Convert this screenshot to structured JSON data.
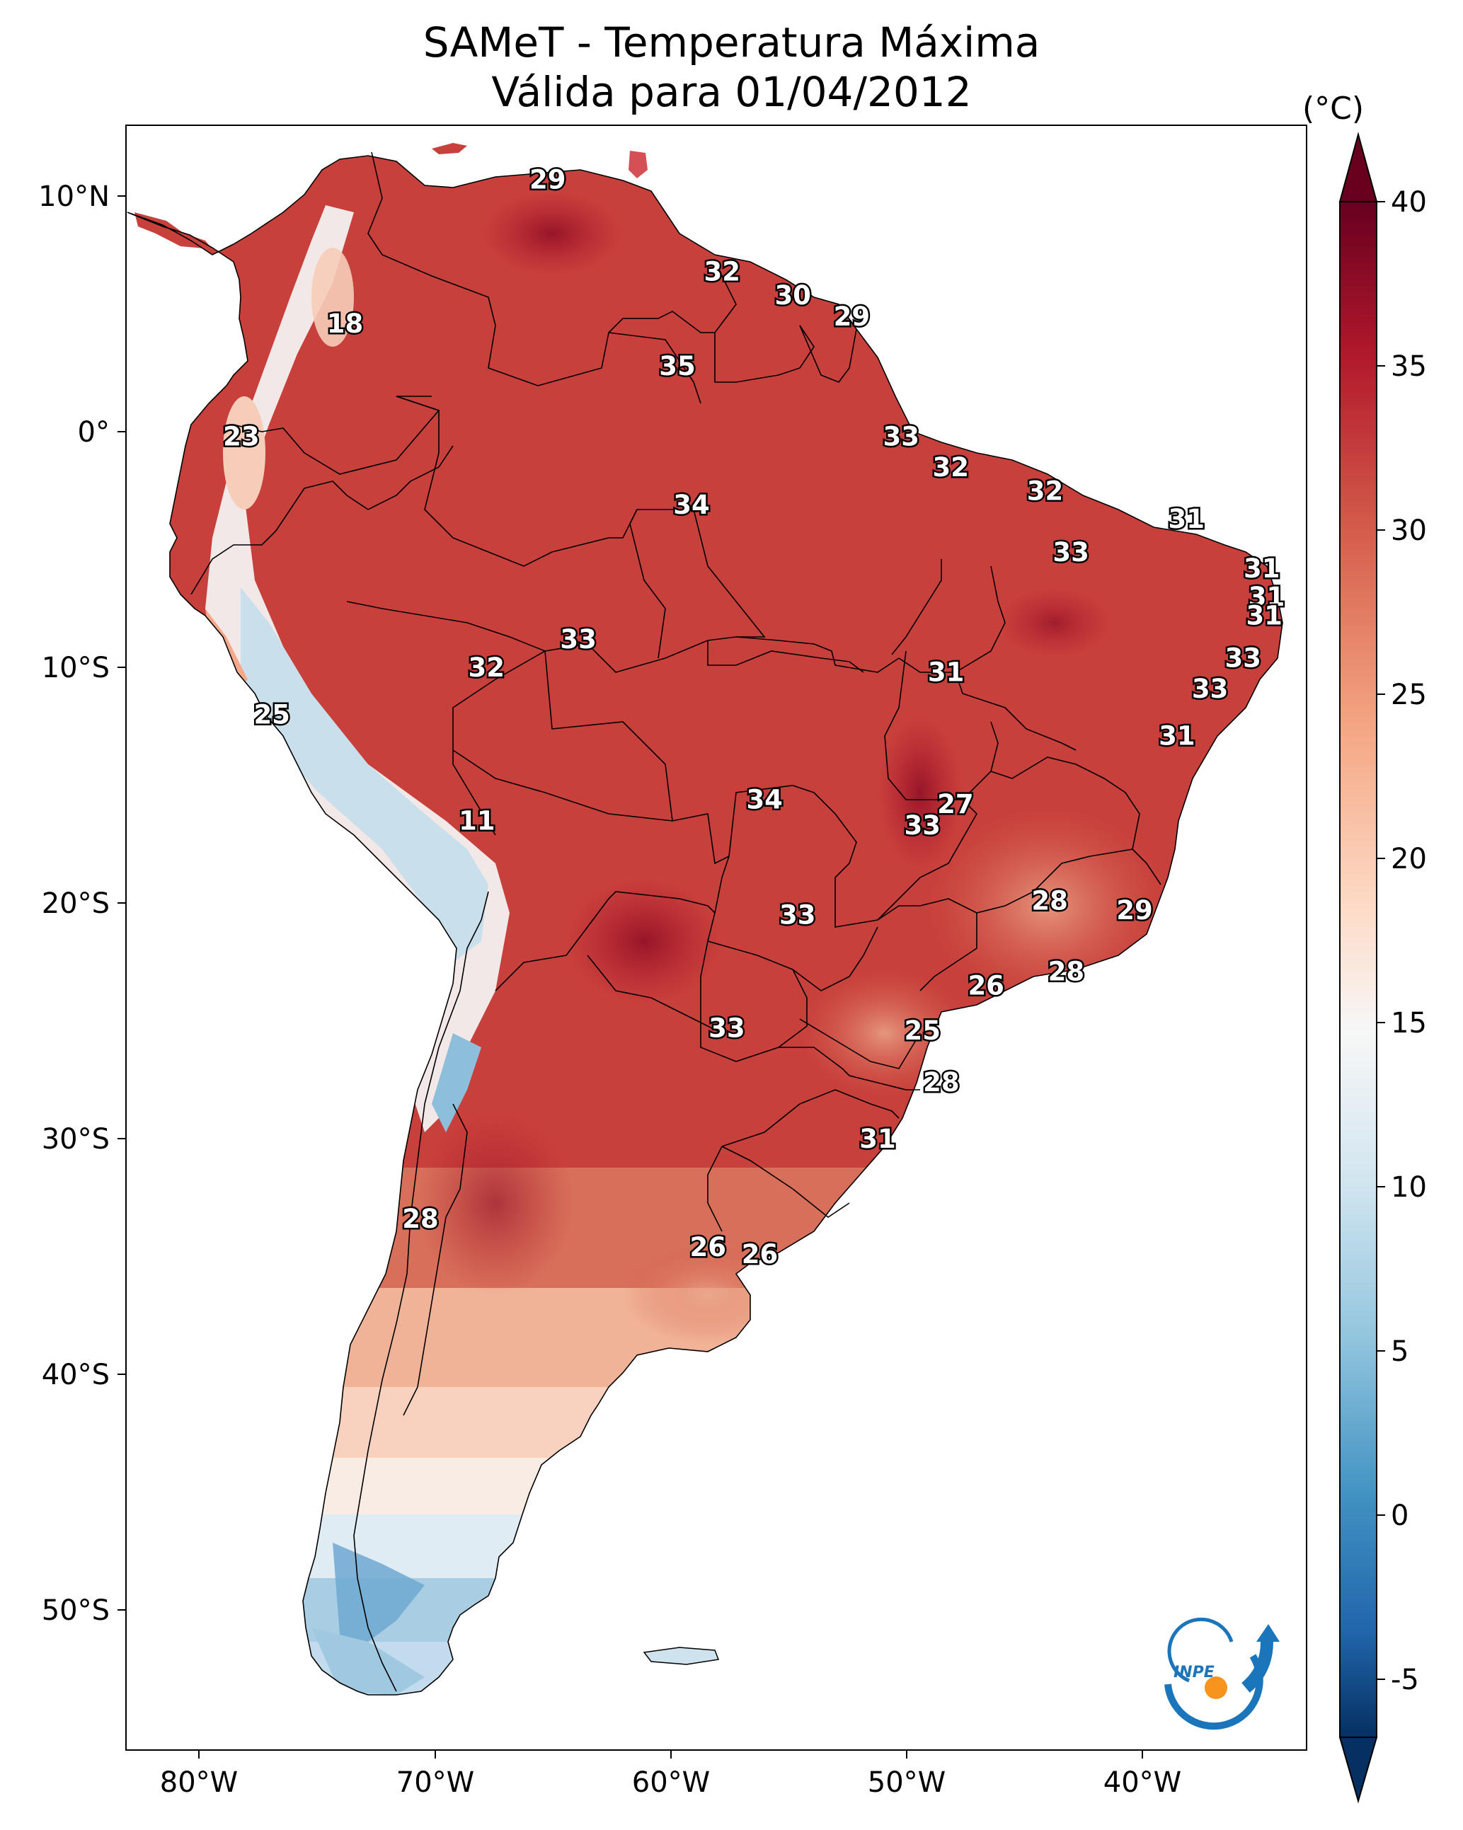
{
  "title": {
    "line1": "SAMeT - Temperatura Máxima",
    "line2": "Válida para 01/04/2012"
  },
  "colorbar": {
    "unit": "(°C)",
    "ticks": [
      "40",
      "35",
      "30",
      "25",
      "20",
      "15",
      "10",
      "5",
      "0",
      "-5"
    ],
    "colors": [
      "#67001f",
      "#b2182b",
      "#d6604d",
      "#f4a582",
      "#fddbc7",
      "#f7f7f7",
      "#d1e5f0",
      "#92c5de",
      "#4393c3",
      "#2166ac",
      "#053061"
    ]
  },
  "axes": {
    "lat_labels": [
      "10°N",
      "0°",
      "10°S",
      "20°S",
      "30°S",
      "40°S",
      "50°S"
    ],
    "lon_labels": [
      "80°W",
      "70°W",
      "60°W",
      "50°W",
      "40°W"
    ]
  },
  "logo": {
    "text": "INPE",
    "colors": {
      "blue": "#1b75bb",
      "orange": "#f7941d"
    }
  },
  "values": [
    {
      "lon": -65.2,
      "lat": 10.7,
      "text": "29"
    },
    {
      "lon": -73.8,
      "lat": 4.6,
      "text": "18"
    },
    {
      "lon": -57.8,
      "lat": 6.8,
      "text": "32"
    },
    {
      "lon": -54.8,
      "lat": 5.8,
      "text": "30"
    },
    {
      "lon": -52.3,
      "lat": 4.9,
      "text": "29"
    },
    {
      "lon": -59.7,
      "lat": 2.8,
      "text": "35"
    },
    {
      "lon": -78.2,
      "lat": -0.2,
      "text": "23"
    },
    {
      "lon": -50.2,
      "lat": -0.2,
      "text": "33"
    },
    {
      "lon": -48.1,
      "lat": -1.5,
      "text": "32"
    },
    {
      "lon": -44.1,
      "lat": -2.5,
      "text": "32"
    },
    {
      "lon": -59.1,
      "lat": -3.1,
      "text": "34"
    },
    {
      "lon": -38.1,
      "lat": -3.7,
      "text": "31"
    },
    {
      "lon": -43.0,
      "lat": -5.1,
      "text": "33"
    },
    {
      "lon": -34.9,
      "lat": -5.8,
      "text": "31"
    },
    {
      "lon": -34.7,
      "lat": -7.0,
      "text": "31"
    },
    {
      "lon": -34.8,
      "lat": -7.8,
      "text": "31"
    },
    {
      "lon": -63.9,
      "lat": -8.8,
      "text": "33"
    },
    {
      "lon": -35.7,
      "lat": -9.6,
      "text": "33"
    },
    {
      "lon": -67.8,
      "lat": -10.0,
      "text": "32"
    },
    {
      "lon": -48.3,
      "lat": -10.2,
      "text": "31"
    },
    {
      "lon": -37.1,
      "lat": -10.9,
      "text": "33"
    },
    {
      "lon": -76.9,
      "lat": -12.0,
      "text": "25"
    },
    {
      "lon": -38.5,
      "lat": -12.9,
      "text": "31"
    },
    {
      "lon": -56.0,
      "lat": -15.6,
      "text": "34"
    },
    {
      "lon": -47.9,
      "lat": -15.8,
      "text": "27"
    },
    {
      "lon": -49.3,
      "lat": -16.7,
      "text": "33"
    },
    {
      "lon": -68.2,
      "lat": -16.5,
      "text": "11"
    },
    {
      "lon": -43.9,
      "lat": -19.9,
      "text": "28"
    },
    {
      "lon": -40.3,
      "lat": -20.3,
      "text": "29"
    },
    {
      "lon": -54.6,
      "lat": -20.5,
      "text": "33"
    },
    {
      "lon": -43.2,
      "lat": -22.9,
      "text": "28"
    },
    {
      "lon": -46.6,
      "lat": -23.5,
      "text": "26"
    },
    {
      "lon": -57.6,
      "lat": -25.3,
      "text": "33"
    },
    {
      "lon": -49.3,
      "lat": -25.4,
      "text": "25"
    },
    {
      "lon": -48.5,
      "lat": -27.6,
      "text": "28"
    },
    {
      "lon": -70.6,
      "lat": -33.4,
      "text": "28"
    },
    {
      "lon": -51.2,
      "lat": -30.0,
      "text": "31"
    },
    {
      "lon": -58.4,
      "lat": -34.6,
      "text": "26"
    },
    {
      "lon": -56.2,
      "lat": -34.9,
      "text": "26"
    }
  ]
}
